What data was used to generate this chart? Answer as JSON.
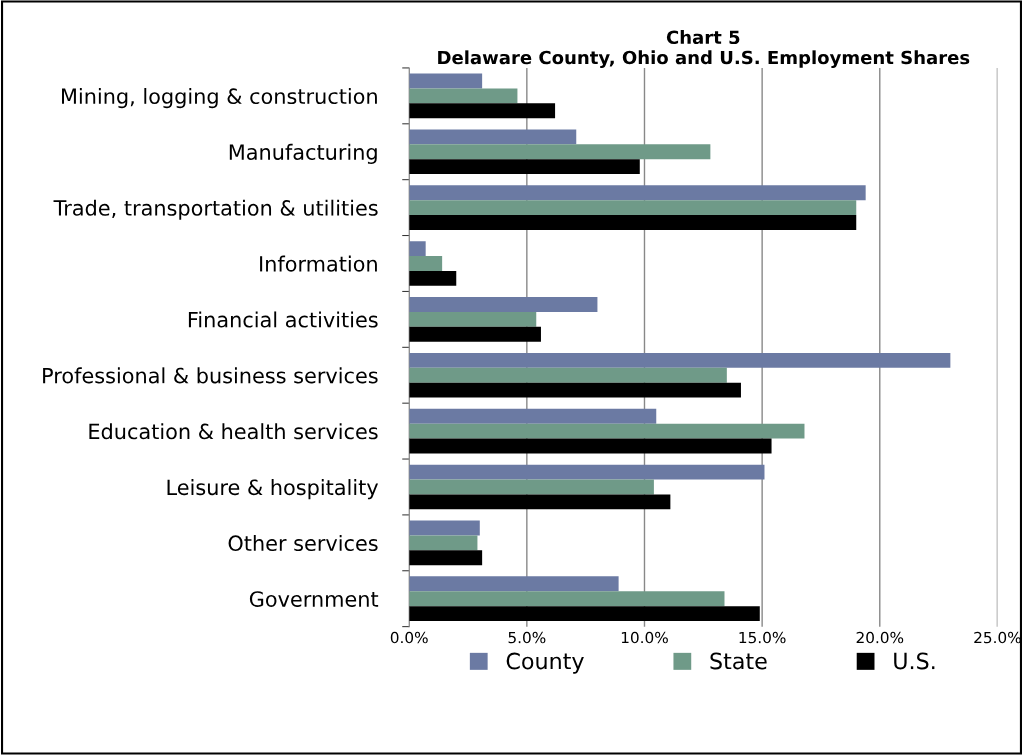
{
  "chart_data": {
    "type": "bar",
    "orientation": "horizontal",
    "title": "Chart 5\nDelaware County, Ohio and U.S. Employment Shares",
    "categories": [
      "Mining, logging & construction",
      "Manufacturing",
      "Trade, transportation & utilities",
      "Information",
      "Financial activities",
      "Professional & business services",
      "Education & health services",
      "Leisure & hospitality",
      "Other services",
      "Government"
    ],
    "series": [
      {
        "name": "County",
        "color": "#6b7aa3",
        "values": [
          3.1,
          7.1,
          19.4,
          0.7,
          8.0,
          23.0,
          10.5,
          15.1,
          3.0,
          8.9
        ]
      },
      {
        "name": "State",
        "color": "#6f9a88",
        "values": [
          4.6,
          12.8,
          19.0,
          1.4,
          5.4,
          13.5,
          16.8,
          10.4,
          2.9,
          13.4
        ]
      },
      {
        "name": "U.S.",
        "color": "#000000",
        "values": [
          6.2,
          9.8,
          19.0,
          2.0,
          5.6,
          14.1,
          15.4,
          11.1,
          3.1,
          14.9
        ]
      }
    ],
    "xlim": [
      0,
      25
    ],
    "xticks": [
      {
        "value": 0,
        "label": "0.0%"
      },
      {
        "value": 5,
        "label": "5.0%"
      },
      {
        "value": 10,
        "label": "10.0%"
      },
      {
        "value": 15,
        "label": "15.0%"
      },
      {
        "value": 20,
        "label": "20.0%"
      },
      {
        "value": 25,
        "label": "25.0%"
      }
    ],
    "grid": "x",
    "legend": "bottom"
  }
}
